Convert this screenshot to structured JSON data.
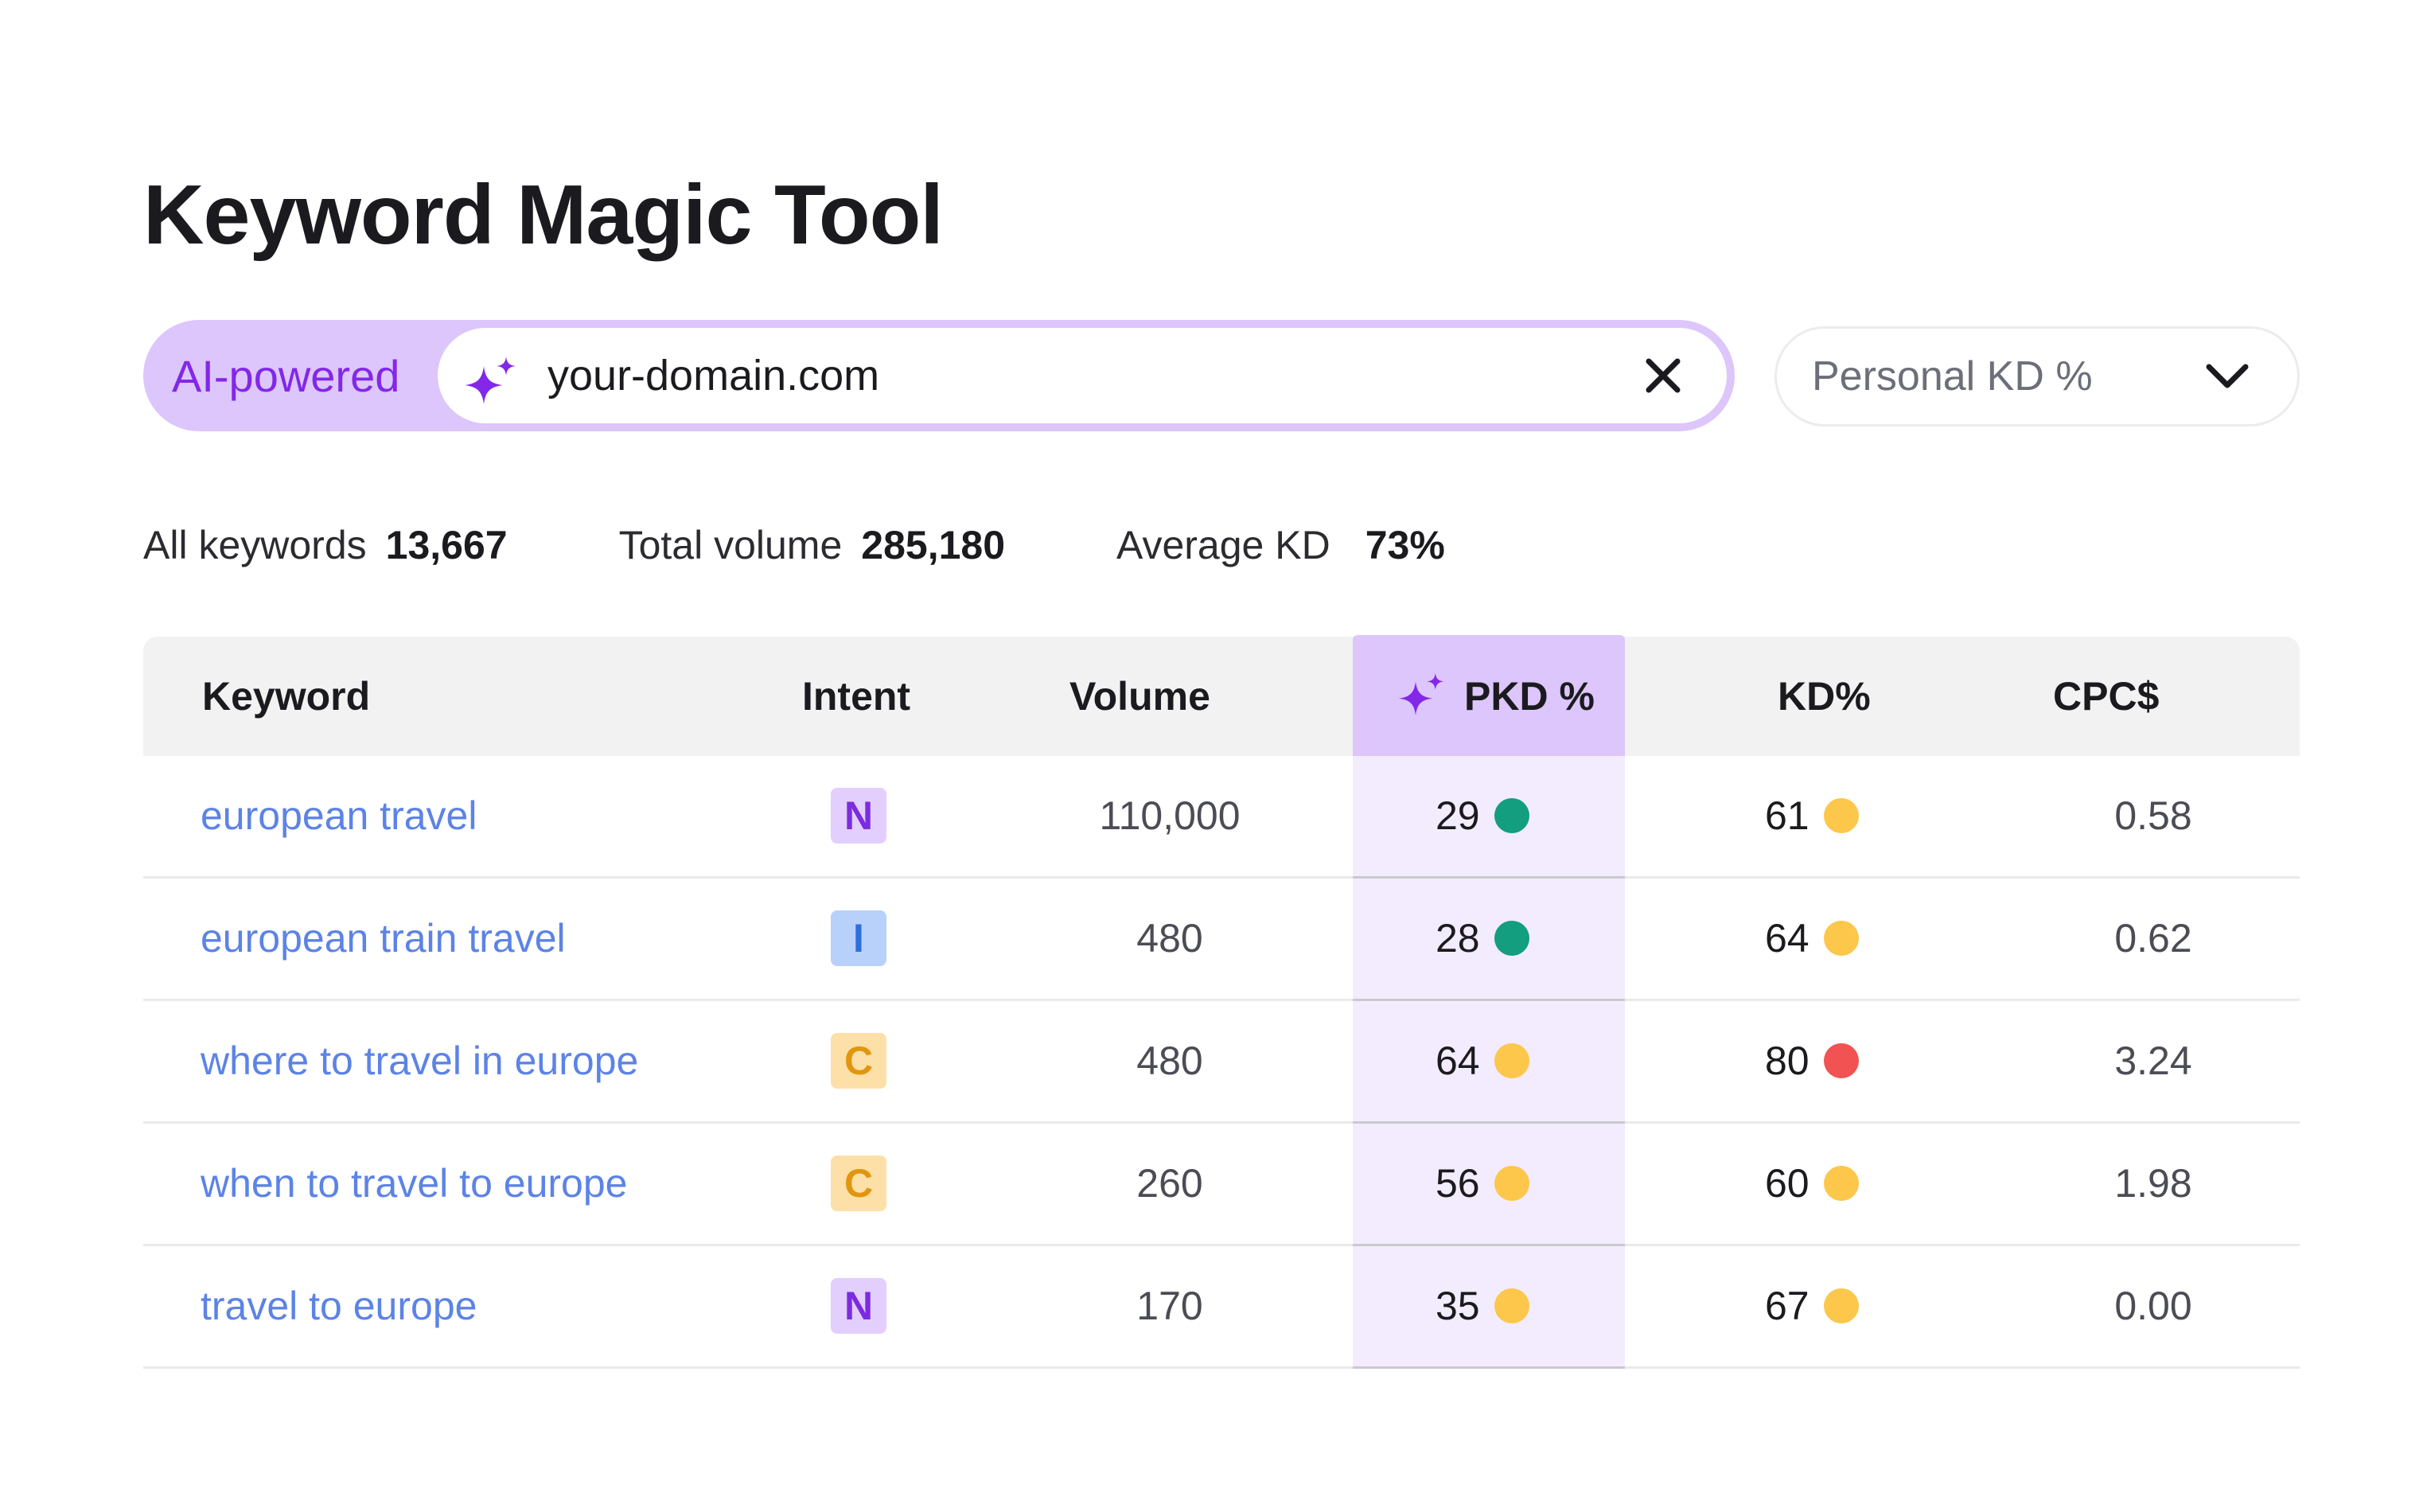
{
  "header": {
    "title": "Keyword Magic Tool"
  },
  "search": {
    "badge_label": "AI-powered",
    "value": "your-domain.com",
    "icon": "sparkle-icon",
    "clear_icon": "close-icon"
  },
  "dropdown": {
    "selected": "Personal KD %",
    "icon": "chevron-down-icon"
  },
  "stats": [
    {
      "label": "All keywords",
      "value": "13,667"
    },
    {
      "label": "Total volume",
      "value": "285,180"
    },
    {
      "label": "Average KD",
      "value": "73%"
    }
  ],
  "table": {
    "columns": [
      "Keyword",
      "Intent",
      "Volume",
      "PKD %",
      "KD%",
      "CPC$"
    ],
    "rows": [
      {
        "keyword": "european travel",
        "intent": "N",
        "volume": "110,000",
        "pkd": "29",
        "pkd_status": "green",
        "kd": "61",
        "kd_status": "yellow",
        "cpc": "0.58"
      },
      {
        "keyword": "european train travel",
        "intent": "I",
        "volume": "480",
        "pkd": "28",
        "pkd_status": "green",
        "kd": "64",
        "kd_status": "yellow",
        "cpc": "0.62"
      },
      {
        "keyword": "where to travel in europe",
        "intent": "C",
        "volume": "480",
        "pkd": "64",
        "pkd_status": "yellow",
        "kd": "80",
        "kd_status": "red",
        "cpc": "3.24"
      },
      {
        "keyword": "when to travel to europe",
        "intent": "C",
        "volume": "260",
        "pkd": "56",
        "pkd_status": "yellow",
        "kd": "60",
        "kd_status": "yellow",
        "cpc": "1.98"
      },
      {
        "keyword": "travel to europe",
        "intent": "N",
        "volume": "170",
        "pkd": "35",
        "pkd_status": "yellow",
        "kd": "67",
        "kd_status": "yellow",
        "cpc": "0.00"
      }
    ]
  },
  "colors": {
    "accent_purple": "#8327e8",
    "link_blue": "#5c83e6",
    "status_green": "#129e7f",
    "status_yellow": "#fcc74b",
    "status_red": "#f25252",
    "intent": {
      "N": {
        "bg": "#e3cffd",
        "fg": "#7c2ce0"
      },
      "I": {
        "bg": "#b8d1fb",
        "fg": "#2f6fdc"
      },
      "C": {
        "bg": "#fde0a8",
        "fg": "#e2950f"
      }
    }
  }
}
